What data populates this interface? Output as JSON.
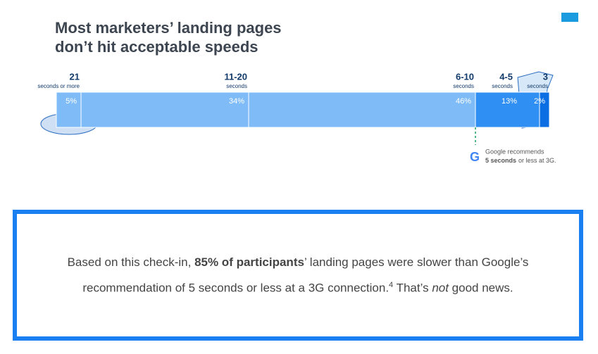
{
  "chart_data": {
    "type": "stacked-bar",
    "title": "Most marketers’ landing pages don’t hit acceptable speeds",
    "categories": [
      "21",
      "11-20",
      "6-10",
      "4-5",
      "3"
    ],
    "category_notes": [
      "seconds or more",
      "seconds",
      "seconds",
      "seconds",
      "seconds"
    ],
    "values": [
      5,
      34,
      46,
      13,
      2
    ],
    "value_labels": [
      "5%",
      "34%",
      "46%",
      "13%",
      "2%"
    ],
    "colors": [
      "#7fbcf7",
      "#7fbcf7",
      "#7fbcf7",
      "#2f8ff2",
      "#0b6fe3"
    ],
    "annotation": {
      "line1": "Google recommends",
      "bold": "5 seconds",
      "rest": "or less at 3G."
    }
  },
  "caption": {
    "parts": [
      "Based on this check-in, ",
      "85% of participants",
      "’ landing pages were slower than Google’s recommendation of 5 seconds or less at a 3G connection.",
      "4",
      " That’s ",
      "not",
      " good news."
    ]
  }
}
